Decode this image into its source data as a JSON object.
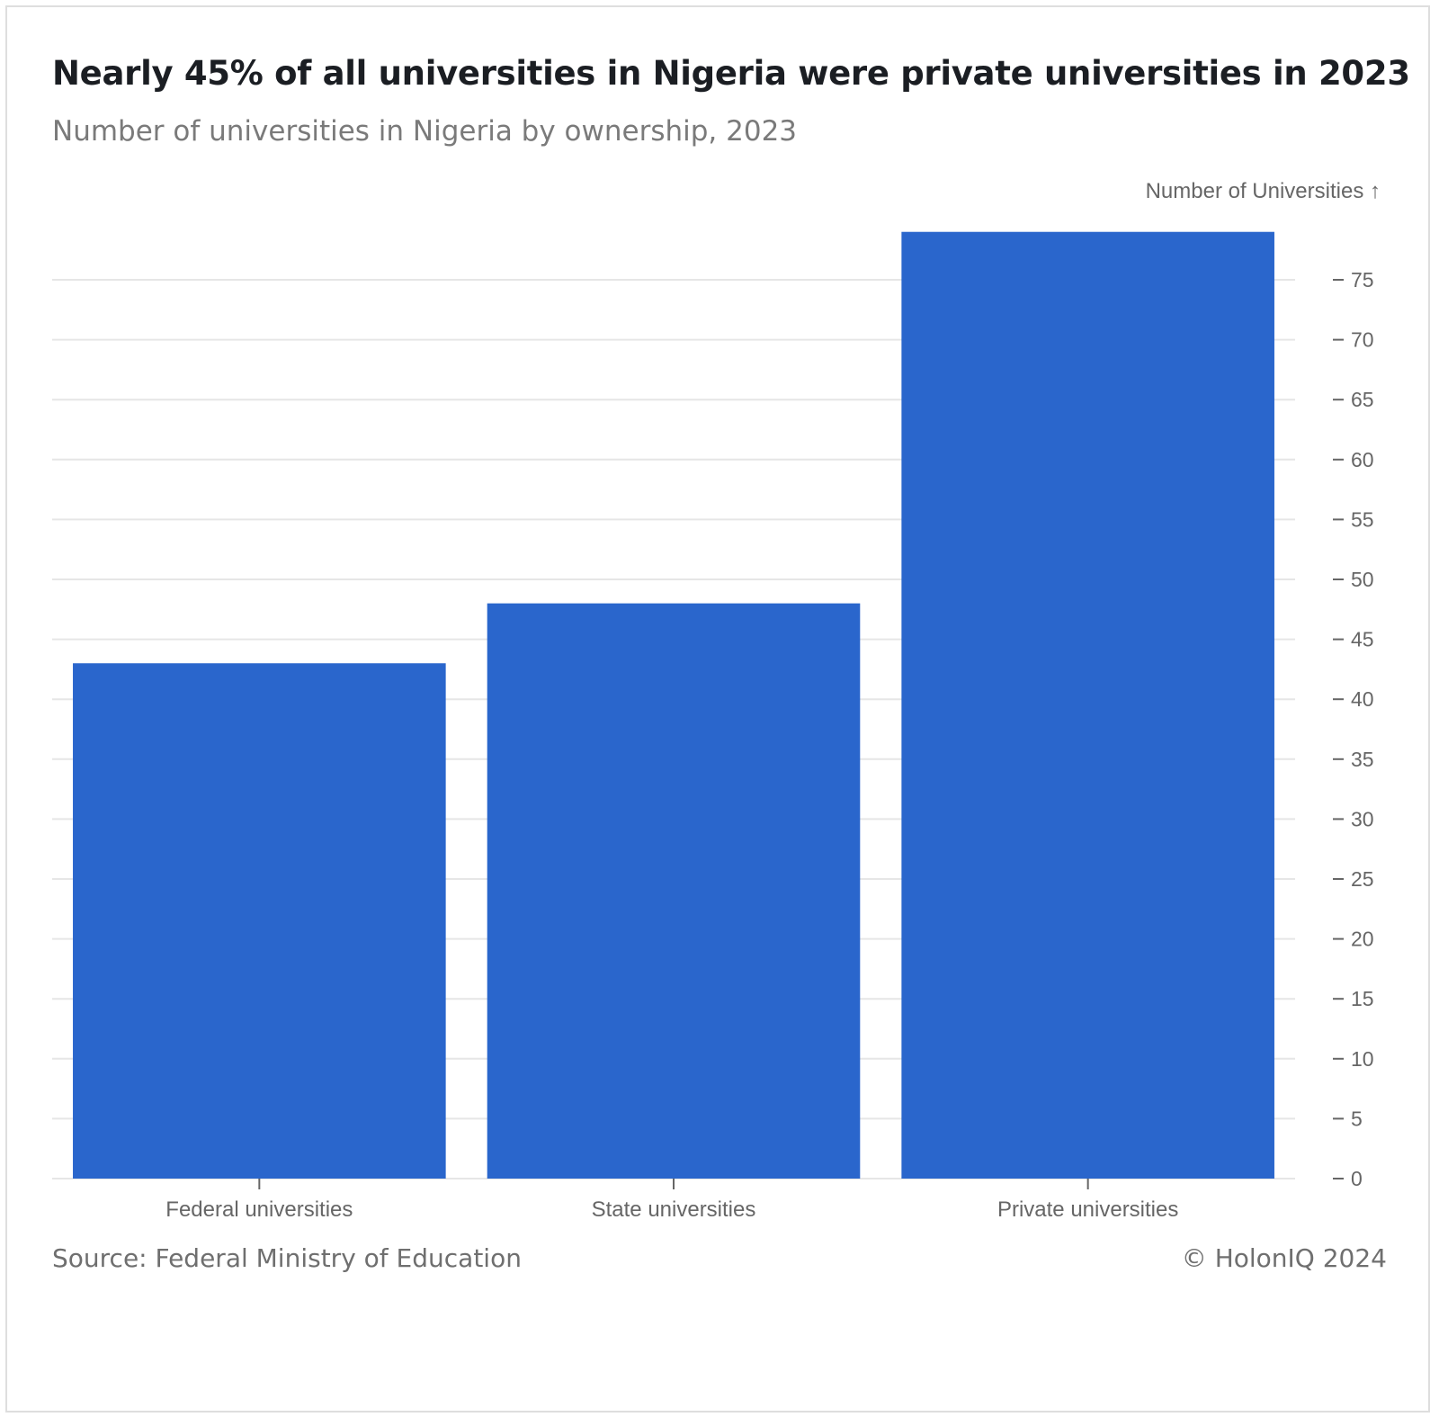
{
  "header": {
    "title": "Nearly 45% of all universities in Nigeria were private universities in 2023",
    "subtitle": "Number of universities in Nigeria by ownership, 2023"
  },
  "footer": {
    "source": "Source: Federal Ministry of Education",
    "copyright": "© HolonIQ 2024"
  },
  "colors": {
    "bar": "#2a66cc",
    "grid": "#e6e6e6",
    "axis_text": "#666666"
  },
  "chart_data": {
    "type": "bar",
    "categories": [
      "Federal universities",
      "State universities",
      "Private universities"
    ],
    "values": [
      43,
      48,
      79
    ],
    "title": "Nearly 45% of all universities in Nigeria were private universities in 2023",
    "subtitle": "Number of universities in Nigeria by ownership, 2023",
    "xlabel": "",
    "ylabel": "Number of Universities ↑",
    "ylim": [
      0,
      79
    ],
    "yticks": [
      0,
      5,
      10,
      15,
      20,
      25,
      30,
      35,
      40,
      45,
      50,
      55,
      60,
      65,
      70,
      75
    ],
    "grid": true,
    "y_axis_side": "right"
  }
}
